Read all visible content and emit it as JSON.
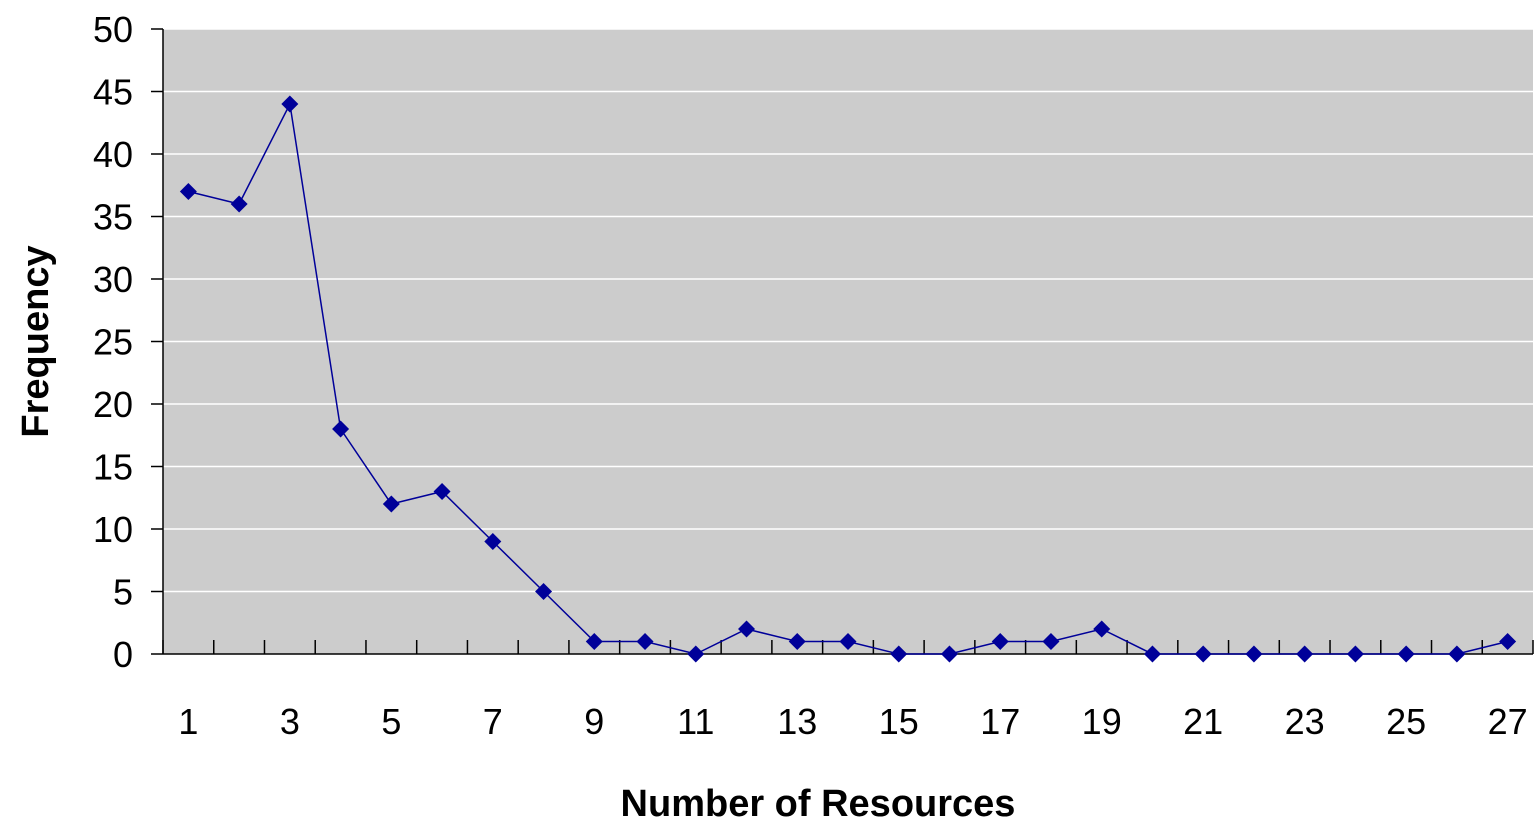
{
  "chart_data": {
    "type": "line",
    "title": "",
    "xlabel": "Number of Resources",
    "ylabel": "Frequency",
    "x": [
      1,
      2,
      3,
      4,
      5,
      6,
      7,
      8,
      9,
      10,
      11,
      12,
      13,
      14,
      15,
      16,
      17,
      18,
      19,
      20,
      21,
      22,
      23,
      24,
      25,
      26,
      27
    ],
    "x_tick_labels": [
      "1",
      "3",
      "5",
      "7",
      "9",
      "11",
      "13",
      "15",
      "17",
      "19",
      "21",
      "23",
      "25",
      "27"
    ],
    "y_tick_labels": [
      "0",
      "5",
      "10",
      "15",
      "20",
      "25",
      "30",
      "35",
      "40",
      "45",
      "50"
    ],
    "ylim": [
      0,
      50
    ],
    "grid": "horizontal",
    "legend": "none",
    "series": [
      {
        "values": [
          37,
          36,
          44,
          18,
          12,
          13,
          9,
          5,
          1,
          1,
          0,
          2,
          1,
          1,
          0,
          0,
          1,
          1,
          2,
          0,
          0,
          0,
          0,
          0,
          0,
          0,
          1
        ]
      }
    ],
    "colors": {
      "plot_background": "#cccccc",
      "gridline": "#ffffff",
      "series": "#000099",
      "axis": "#000000"
    }
  }
}
